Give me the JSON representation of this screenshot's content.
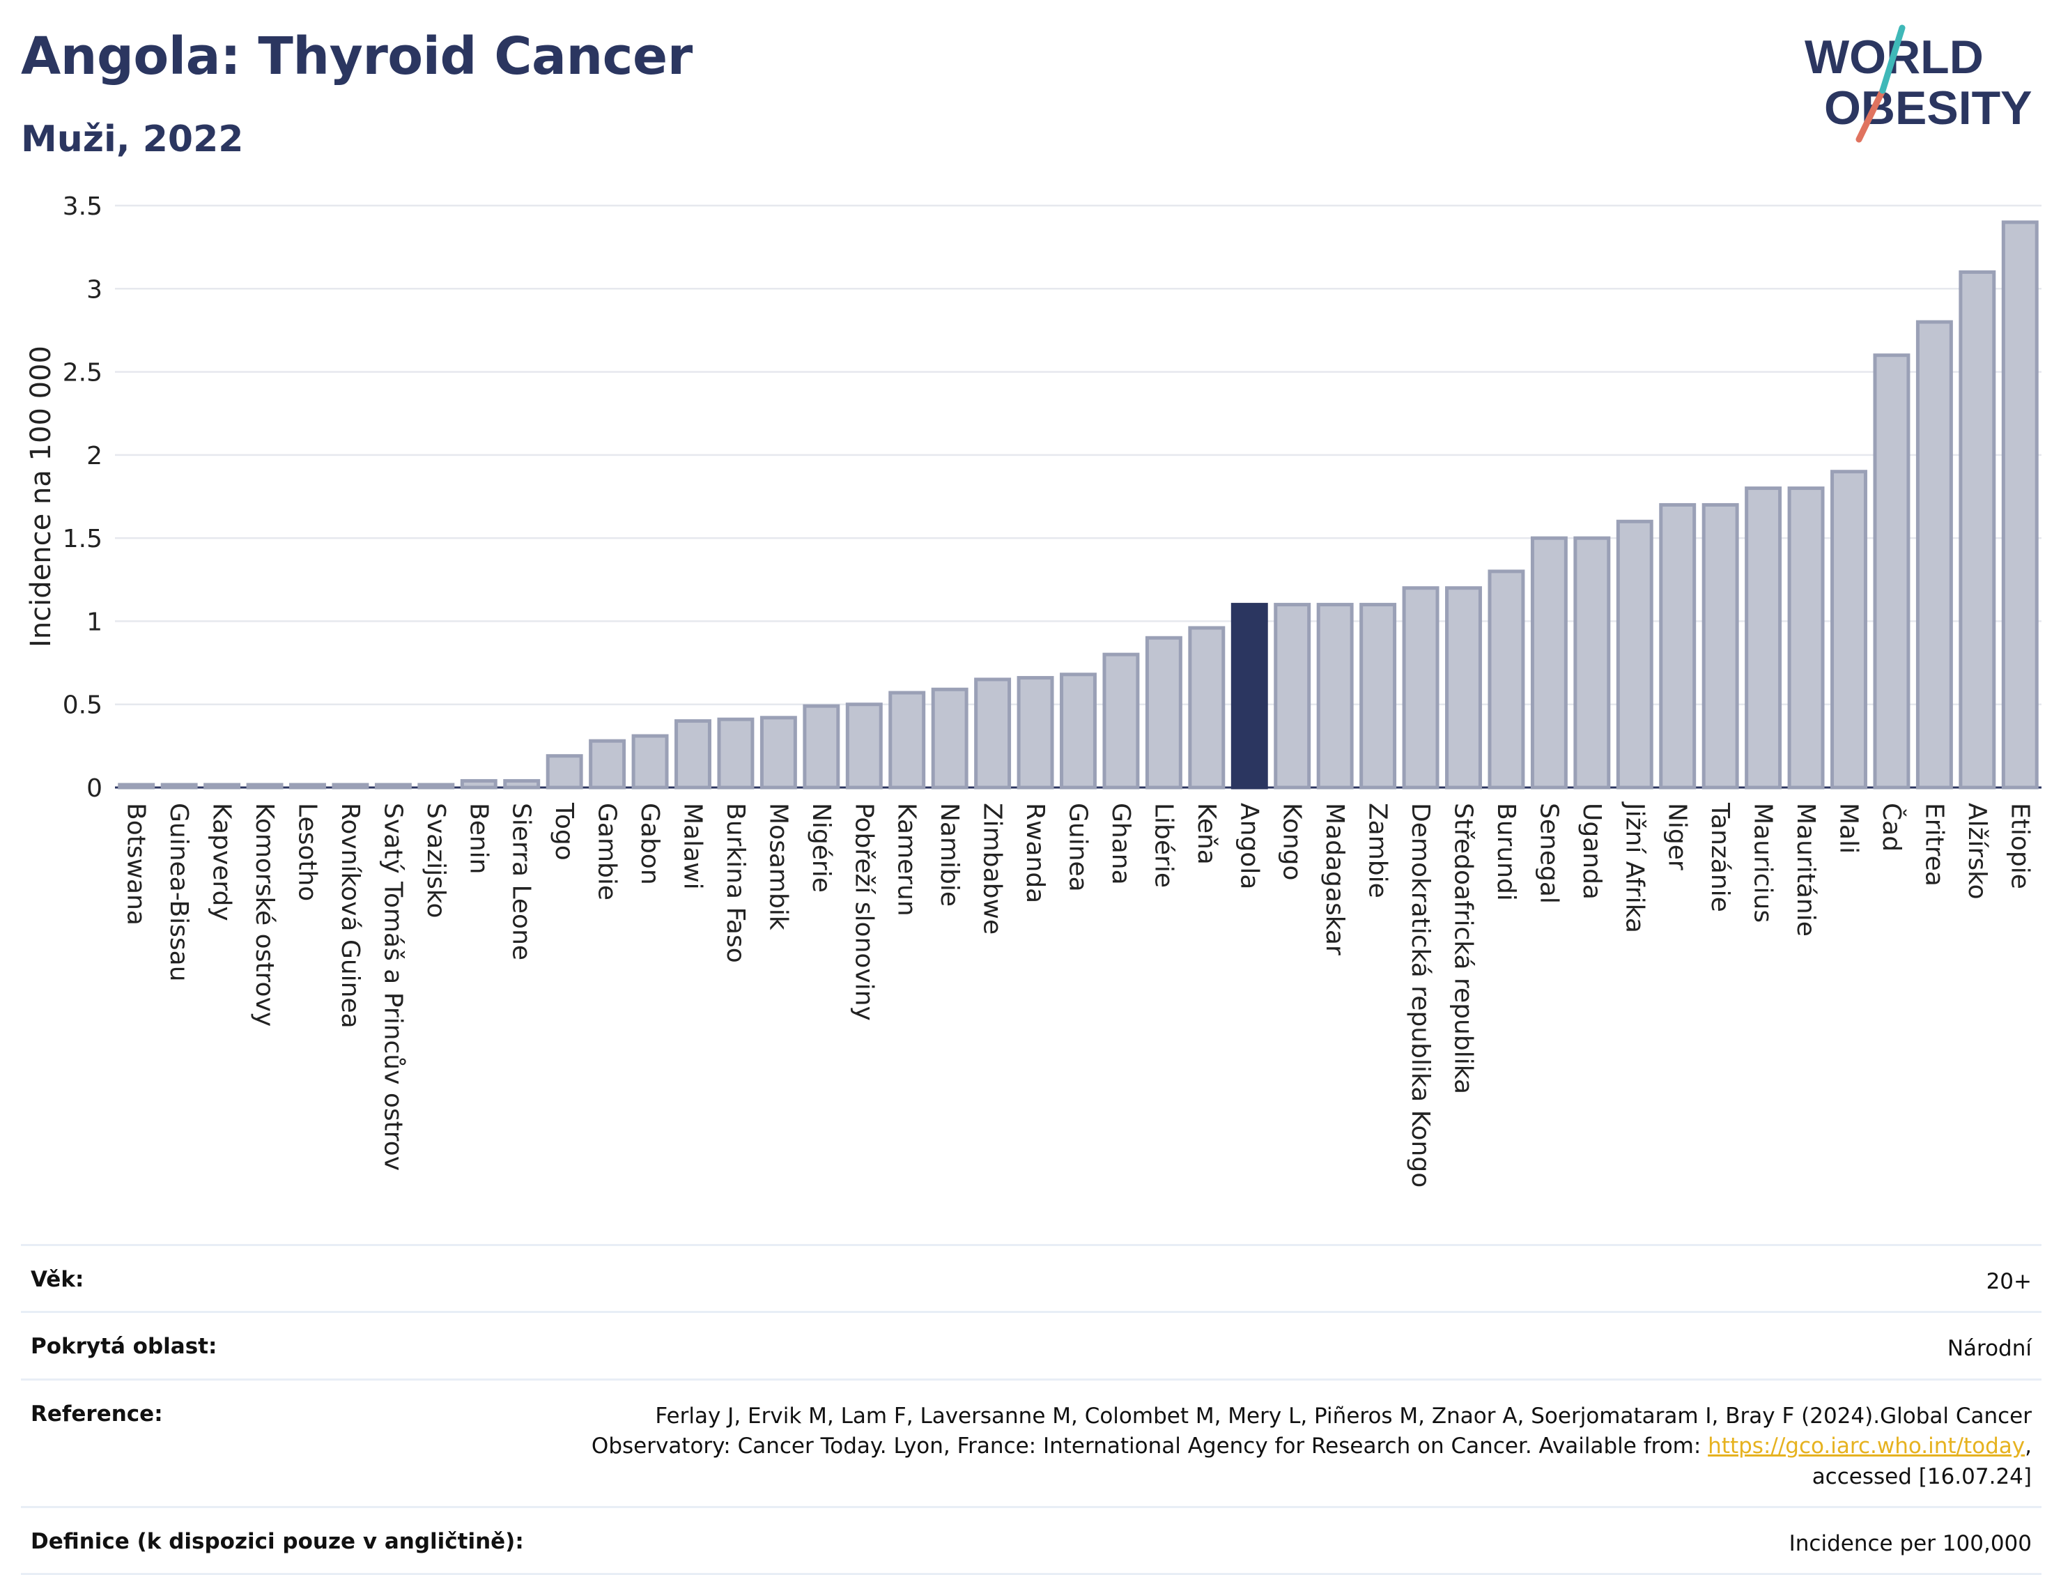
{
  "header": {
    "title": "Angola: Thyroid Cancer",
    "subtitle": "Muži, 2022"
  },
  "logo": {
    "line1": "WORLD",
    "line2": "OBESITY"
  },
  "colors": {
    "bar": "#c0c4d1",
    "bar_stroke": "#9aa0b6",
    "highlight": "#2b3660",
    "grid": "#e6e8ee"
  },
  "chart_data": {
    "type": "bar",
    "ylabel": "Incidence na 100 000",
    "ylim": [
      0,
      3.5
    ],
    "yticks": [
      "0",
      "0.5",
      "1",
      "1.5",
      "2",
      "2.5",
      "3",
      "3.5"
    ],
    "highlight": "Angola",
    "categories": [
      "Botswana",
      "Guinea-Bissau",
      "Kapverdy",
      "Komorské ostrovy",
      "Lesotho",
      "Rovníková Guinea",
      "Svatý Tomáš a Princův ostrov",
      "Svazijsko",
      "Benin",
      "Sierra Leone",
      "Togo",
      "Gambie",
      "Gabon",
      "Malawi",
      "Burkina Faso",
      "Mosambik",
      "Nigérie",
      "Pobřeží slonoviny",
      "Kamerun",
      "Namibie",
      "Zimbabwe",
      "Rwanda",
      "Guinea",
      "Ghana",
      "Libérie",
      "Keňa",
      "Angola",
      "Kongo",
      "Madagaskar",
      "Zambie",
      "Demokratická republika Kongo",
      "Středoafrická republika",
      "Burundi",
      "Senegal",
      "Uganda",
      "Jižní Afrika",
      "Niger",
      "Tanzánie",
      "Mauricius",
      "Mauritánie",
      "Mali",
      "Čad",
      "Eritrea",
      "Alžírsko",
      "Etiopie"
    ],
    "values": [
      0.01,
      0.01,
      0.01,
      0.01,
      0.01,
      0.01,
      0.01,
      0.01,
      0.04,
      0.04,
      0.19,
      0.28,
      0.31,
      0.4,
      0.41,
      0.42,
      0.49,
      0.5,
      0.57,
      0.59,
      0.65,
      0.66,
      0.68,
      0.8,
      0.9,
      0.96,
      1.1,
      1.1,
      1.1,
      1.1,
      1.2,
      1.2,
      1.3,
      1.5,
      1.5,
      1.6,
      1.7,
      1.7,
      1.8,
      1.8,
      1.9,
      2.6,
      2.8,
      3.1,
      3.4
    ]
  },
  "meta": [
    {
      "label": "Věk:",
      "value": "20+"
    },
    {
      "label": "Pokrytá oblast:",
      "value": "Národní"
    },
    {
      "label": "Reference:",
      "value_line1": "Ferlay J, Ervik M, Lam F, Laversanne M, Colombet M, Mery L, Piñeros M, Znaor A, Soerjomataram I, Bray F (2024).Global Cancer",
      "value_line2_pre": "Observatory: Cancer Today. Lyon, France: International Agency for Research on Cancer. Available from: ",
      "link": "https://gco.iarc.who.int/today",
      "value_line2_post": ",",
      "value_line3": "accessed [16.07.24]"
    },
    {
      "label": "Definice (k dispozici pouze v angličtině):",
      "value": "Incidence per 100,000"
    }
  ]
}
